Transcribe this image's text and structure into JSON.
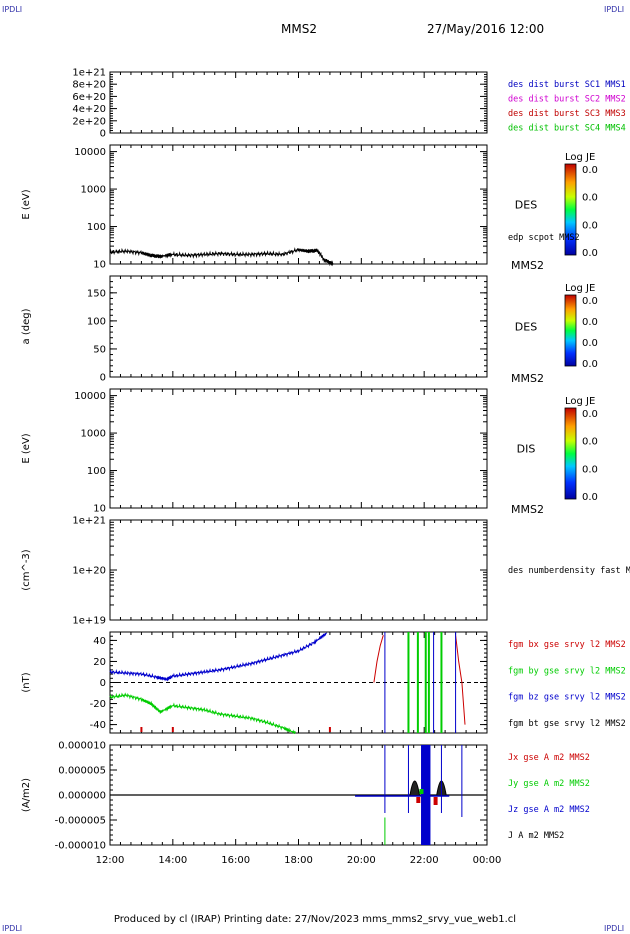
{
  "header": {
    "corner_left": "IPDLI",
    "corner_right": "IPDLI",
    "spacecraft": "MMS2",
    "datetime": "27/May/2016 12:00"
  },
  "footer": {
    "text": "Produced by cl (IRAP)   Printing date: 27/Nov/2023   mms_mms2_srvy_vue_web1.cl",
    "corner_left": "IPDLI",
    "corner_right": "IPDLI"
  },
  "colors": {
    "sc1": "#0000c0",
    "sc2": "#d000d0",
    "sc3": "#c00000",
    "sc4": "#00c000",
    "bx": "#cc0000",
    "by": "#00cc00",
    "bz": "#0000cc"
  },
  "chart_data": [
    {
      "id": "p1",
      "type": "line",
      "ytick_labels": [
        "0",
        "2e+20",
        "4e+20",
        "6e+20",
        "8e+20",
        "1e+21"
      ],
      "ylim": [
        0,
        1e+21
      ],
      "legend": [
        "des dist burst SC1 MMS1",
        "des dist burst SC2 MMS2",
        "des dist burst SC3 MMS3",
        "des dist burst SC4 MMS4"
      ],
      "zero_line": true
    },
    {
      "id": "p2",
      "type": "heatmap",
      "scale": "log",
      "ylabel": "E (eV)",
      "ytick_labels": [
        "10",
        "100",
        "1000",
        "10000"
      ],
      "ylim": [
        10,
        15000
      ],
      "instrument": "DES",
      "overlay_label": "edp scpot MMS2",
      "sc_label": "MMS2",
      "overlay": {
        "name": "edp scpot",
        "x": [
          12.0,
          12.5,
          13.0,
          13.3,
          13.6,
          14.0,
          14.5,
          15.0,
          15.5,
          16.0,
          16.5,
          17.0,
          17.5,
          18.0,
          18.3,
          18.6,
          18.8,
          19.0,
          19.1
        ],
        "y": [
          21,
          22,
          20,
          17,
          16,
          18,
          17,
          18,
          19,
          18,
          18,
          19,
          18,
          24,
          22,
          23,
          13,
          11,
          10
        ]
      },
      "colorbar": {
        "title": "Log JE",
        "labels": [
          "0.0",
          "0.0",
          "0.0",
          "0.0"
        ]
      }
    },
    {
      "id": "p3",
      "type": "heatmap",
      "ylabel": "a (deg)",
      "ytick_labels": [
        "0",
        "50",
        "100",
        "150"
      ],
      "ylim": [
        0,
        180
      ],
      "instrument": "DES",
      "sc_label": "MMS2",
      "colorbar": {
        "title": "Log JE",
        "labels": [
          "0.0",
          "0.0",
          "0.0",
          "0.0"
        ]
      }
    },
    {
      "id": "p4",
      "type": "heatmap",
      "scale": "log",
      "ylabel": "E (eV)",
      "ytick_labels": [
        "10",
        "100",
        "1000",
        "10000"
      ],
      "ylim": [
        10,
        15000
      ],
      "instrument": "DIS",
      "sc_label": "MMS2",
      "colorbar": {
        "title": "Log JE",
        "labels": [
          "0.0",
          "0.0",
          "0.0",
          "0.0"
        ]
      }
    },
    {
      "id": "p5",
      "type": "line",
      "scale": "log",
      "ylabel": "(cm^-3)",
      "ytick_labels": [
        "1e+19",
        "1e+20",
        "1e+21"
      ],
      "ylim": [
        1e+19,
        1e+21
      ],
      "legend": [
        "des numberdensity fast M"
      ]
    },
    {
      "id": "p6",
      "type": "line",
      "ylabel": "(nT)",
      "ytick_labels": [
        "-40",
        "-20",
        "0",
        "20",
        "40"
      ],
      "ylim": [
        -48,
        48
      ],
      "legend": [
        "fgm bx gse srvy l2 MMS2",
        "fgm by gse srvy l2 MMS2",
        "fgm bz gse srvy l2 MMS2",
        "fgm bt gse srvy l2 MMS2"
      ],
      "zero_line": true,
      "series": [
        {
          "name": "fgm bz",
          "x": [
            12.0,
            12.5,
            13.0,
            13.5,
            13.8,
            14.0,
            14.5,
            15.0,
            15.5,
            16.0,
            16.5,
            17.0,
            17.5,
            18.0,
            18.5,
            18.9
          ],
          "y": [
            10,
            9,
            8,
            5,
            3,
            6,
            8,
            10,
            12,
            15,
            18,
            22,
            26,
            30,
            38,
            47
          ]
        },
        {
          "name": "fgm by",
          "x": [
            12.0,
            12.5,
            13.0,
            13.3,
            13.6,
            14.0,
            14.5,
            15.0,
            15.5,
            16.0,
            16.5,
            17.0,
            17.5,
            17.9
          ],
          "y": [
            -14,
            -12,
            -16,
            -20,
            -28,
            -22,
            -24,
            -26,
            -30,
            -32,
            -34,
            -38,
            -43,
            -48
          ]
        },
        {
          "name": "fgm bx",
          "x": [
            20.4,
            20.5,
            20.6,
            20.7
          ],
          "y": [
            0,
            20,
            35,
            45
          ]
        },
        {
          "name": "fgm bx",
          "x": [
            23.0,
            23.1,
            23.2,
            23.3
          ],
          "y": [
            45,
            20,
            0,
            -40
          ]
        }
      ],
      "verticals": [
        {
          "x": 20.75,
          "color": "bz"
        },
        {
          "x": 21.5,
          "color": "by"
        },
        {
          "x": 21.8,
          "color": "by"
        },
        {
          "x": 22.05,
          "color": "by"
        },
        {
          "x": 22.15,
          "color": "by"
        },
        {
          "x": 22.55,
          "color": "by"
        },
        {
          "x": 22.3,
          "color": "bz"
        },
        {
          "x": 23.0,
          "color": "bz"
        }
      ]
    },
    {
      "id": "p7",
      "type": "line",
      "ylabel": "(A/m2)",
      "ytick_labels": [
        "-0.000010",
        "-0.000005",
        "0.000000",
        "0.000005",
        "0.000010"
      ],
      "ylim": [
        -1e-05,
        1e-05
      ],
      "legend": [
        "Jx gse A m2 MMS2",
        "Jy gse A m2 MMS2",
        "Jz gse A m2 MMS2",
        "J A m2 MMS2"
      ],
      "block": {
        "x0": 21.9,
        "x1": 22.2
      },
      "verticals": [
        {
          "x": 20.75,
          "color": "bz"
        },
        {
          "x": 20.75,
          "color": "by",
          "short": true
        },
        {
          "x": 21.5,
          "color": "bz"
        },
        {
          "x": 22.55,
          "color": "bz"
        },
        {
          "x": 23.2,
          "color": "bz"
        }
      ],
      "xtick_labels": [
        "12:00",
        "14:00",
        "16:00",
        "18:00",
        "20:00",
        "22:00",
        "00:00"
      ],
      "xlim": [
        12,
        24
      ]
    }
  ]
}
